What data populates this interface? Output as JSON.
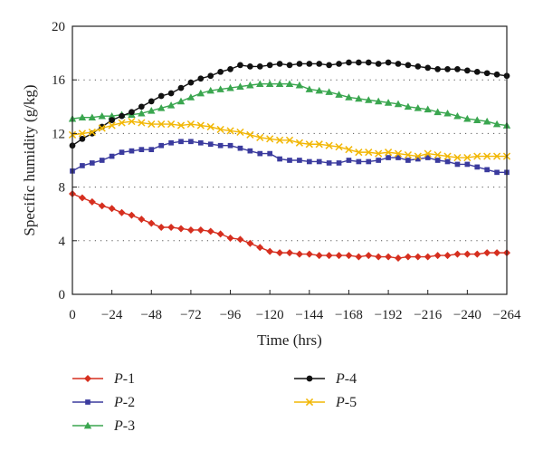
{
  "chart_data": {
    "type": "line",
    "title": "",
    "xlabel": "Time (hrs)",
    "ylabel": "Specific humidity (g/kg)",
    "xlim": [
      0,
      -264
    ],
    "ylim": [
      0,
      20
    ],
    "grid": "horizontal dotted",
    "legend_position": "bottom",
    "x_ticks": [
      0,
      -24,
      -48,
      -72,
      -96,
      -120,
      -144,
      -168,
      -192,
      -216,
      -240,
      -264
    ],
    "x_tick_labels": [
      "0",
      "−24",
      "−48",
      "−72",
      "−96",
      "−120",
      "−144",
      "−168",
      "−192",
      "−216",
      "−240",
      "−264"
    ],
    "y_ticks": [
      0,
      4,
      8,
      12,
      16,
      20
    ],
    "y_tick_labels": [
      "0",
      "4",
      "8",
      "12",
      "16",
      "20"
    ],
    "x": [
      0,
      -6,
      -12,
      -18,
      -24,
      -30,
      -36,
      -42,
      -48,
      -54,
      -60,
      -66,
      -72,
      -78,
      -84,
      -90,
      -96,
      -102,
      -108,
      -114,
      -120,
      -126,
      -132,
      -138,
      -144,
      -150,
      -156,
      -162,
      -168,
      -174,
      -180,
      -186,
      -192,
      -198,
      -204,
      -210,
      -216,
      -222,
      -228,
      -234,
      -240,
      -246,
      -252,
      -258,
      -264
    ],
    "series": [
      {
        "name_prefix": "P",
        "name_suffix": "-1",
        "color": "#d62f1f",
        "marker": "diamond",
        "values": [
          7.5,
          7.2,
          6.9,
          6.6,
          6.4,
          6.1,
          5.9,
          5.6,
          5.3,
          5.0,
          5.0,
          4.9,
          4.8,
          4.8,
          4.7,
          4.5,
          4.2,
          4.1,
          3.8,
          3.5,
          3.2,
          3.1,
          3.1,
          3.0,
          3.0,
          2.9,
          2.9,
          2.9,
          2.9,
          2.8,
          2.9,
          2.8,
          2.8,
          2.7,
          2.8,
          2.8,
          2.8,
          2.9,
          2.9,
          3.0,
          3.0,
          3.0,
          3.1,
          3.1,
          3.1
        ]
      },
      {
        "name_prefix": "P",
        "name_suffix": "-2",
        "color": "#3b3b9e",
        "marker": "square",
        "values": [
          9.2,
          9.6,
          9.8,
          10.0,
          10.3,
          10.6,
          10.7,
          10.8,
          10.8,
          11.1,
          11.3,
          11.4,
          11.4,
          11.3,
          11.2,
          11.1,
          11.1,
          10.9,
          10.7,
          10.5,
          10.5,
          10.1,
          10.0,
          10.0,
          9.9,
          9.9,
          9.8,
          9.8,
          10.0,
          9.9,
          9.9,
          10.0,
          10.2,
          10.2,
          10.0,
          10.1,
          10.2,
          10.0,
          9.9,
          9.7,
          9.7,
          9.5,
          9.3,
          9.1,
          9.1
        ]
      },
      {
        "name_prefix": "P",
        "name_suffix": "-3",
        "color": "#3aa64f",
        "marker": "triangle",
        "values": [
          13.1,
          13.2,
          13.2,
          13.3,
          13.3,
          13.4,
          13.4,
          13.5,
          13.7,
          13.9,
          14.1,
          14.4,
          14.7,
          15.0,
          15.2,
          15.3,
          15.4,
          15.5,
          15.6,
          15.7,
          15.7,
          15.7,
          15.7,
          15.6,
          15.3,
          15.2,
          15.1,
          14.9,
          14.7,
          14.6,
          14.5,
          14.4,
          14.3,
          14.2,
          14.0,
          13.9,
          13.8,
          13.6,
          13.5,
          13.3,
          13.1,
          13.0,
          12.9,
          12.7,
          12.6
        ]
      },
      {
        "name_prefix": "P",
        "name_suffix": "-4",
        "color": "#111111",
        "marker": "circle",
        "values": [
          11.1,
          11.6,
          12.0,
          12.5,
          13.0,
          13.3,
          13.6,
          14.0,
          14.4,
          14.8,
          15.0,
          15.4,
          15.8,
          16.1,
          16.3,
          16.6,
          16.8,
          17.1,
          17.0,
          17.0,
          17.1,
          17.2,
          17.1,
          17.2,
          17.2,
          17.2,
          17.1,
          17.2,
          17.3,
          17.3,
          17.3,
          17.2,
          17.3,
          17.2,
          17.1,
          17.0,
          16.9,
          16.8,
          16.8,
          16.8,
          16.7,
          16.6,
          16.5,
          16.4,
          16.3
        ]
      },
      {
        "name_prefix": "P",
        "name_suffix": "-5",
        "color": "#f2b705",
        "marker": "x",
        "values": [
          11.9,
          12.0,
          12.1,
          12.4,
          12.6,
          12.8,
          12.9,
          12.8,
          12.7,
          12.7,
          12.7,
          12.6,
          12.7,
          12.6,
          12.5,
          12.3,
          12.2,
          12.1,
          11.9,
          11.7,
          11.6,
          11.5,
          11.5,
          11.3,
          11.2,
          11.2,
          11.1,
          11.0,
          10.8,
          10.6,
          10.6,
          10.5,
          10.6,
          10.5,
          10.4,
          10.3,
          10.5,
          10.4,
          10.3,
          10.2,
          10.2,
          10.3,
          10.3,
          10.3,
          10.3
        ]
      }
    ]
  }
}
